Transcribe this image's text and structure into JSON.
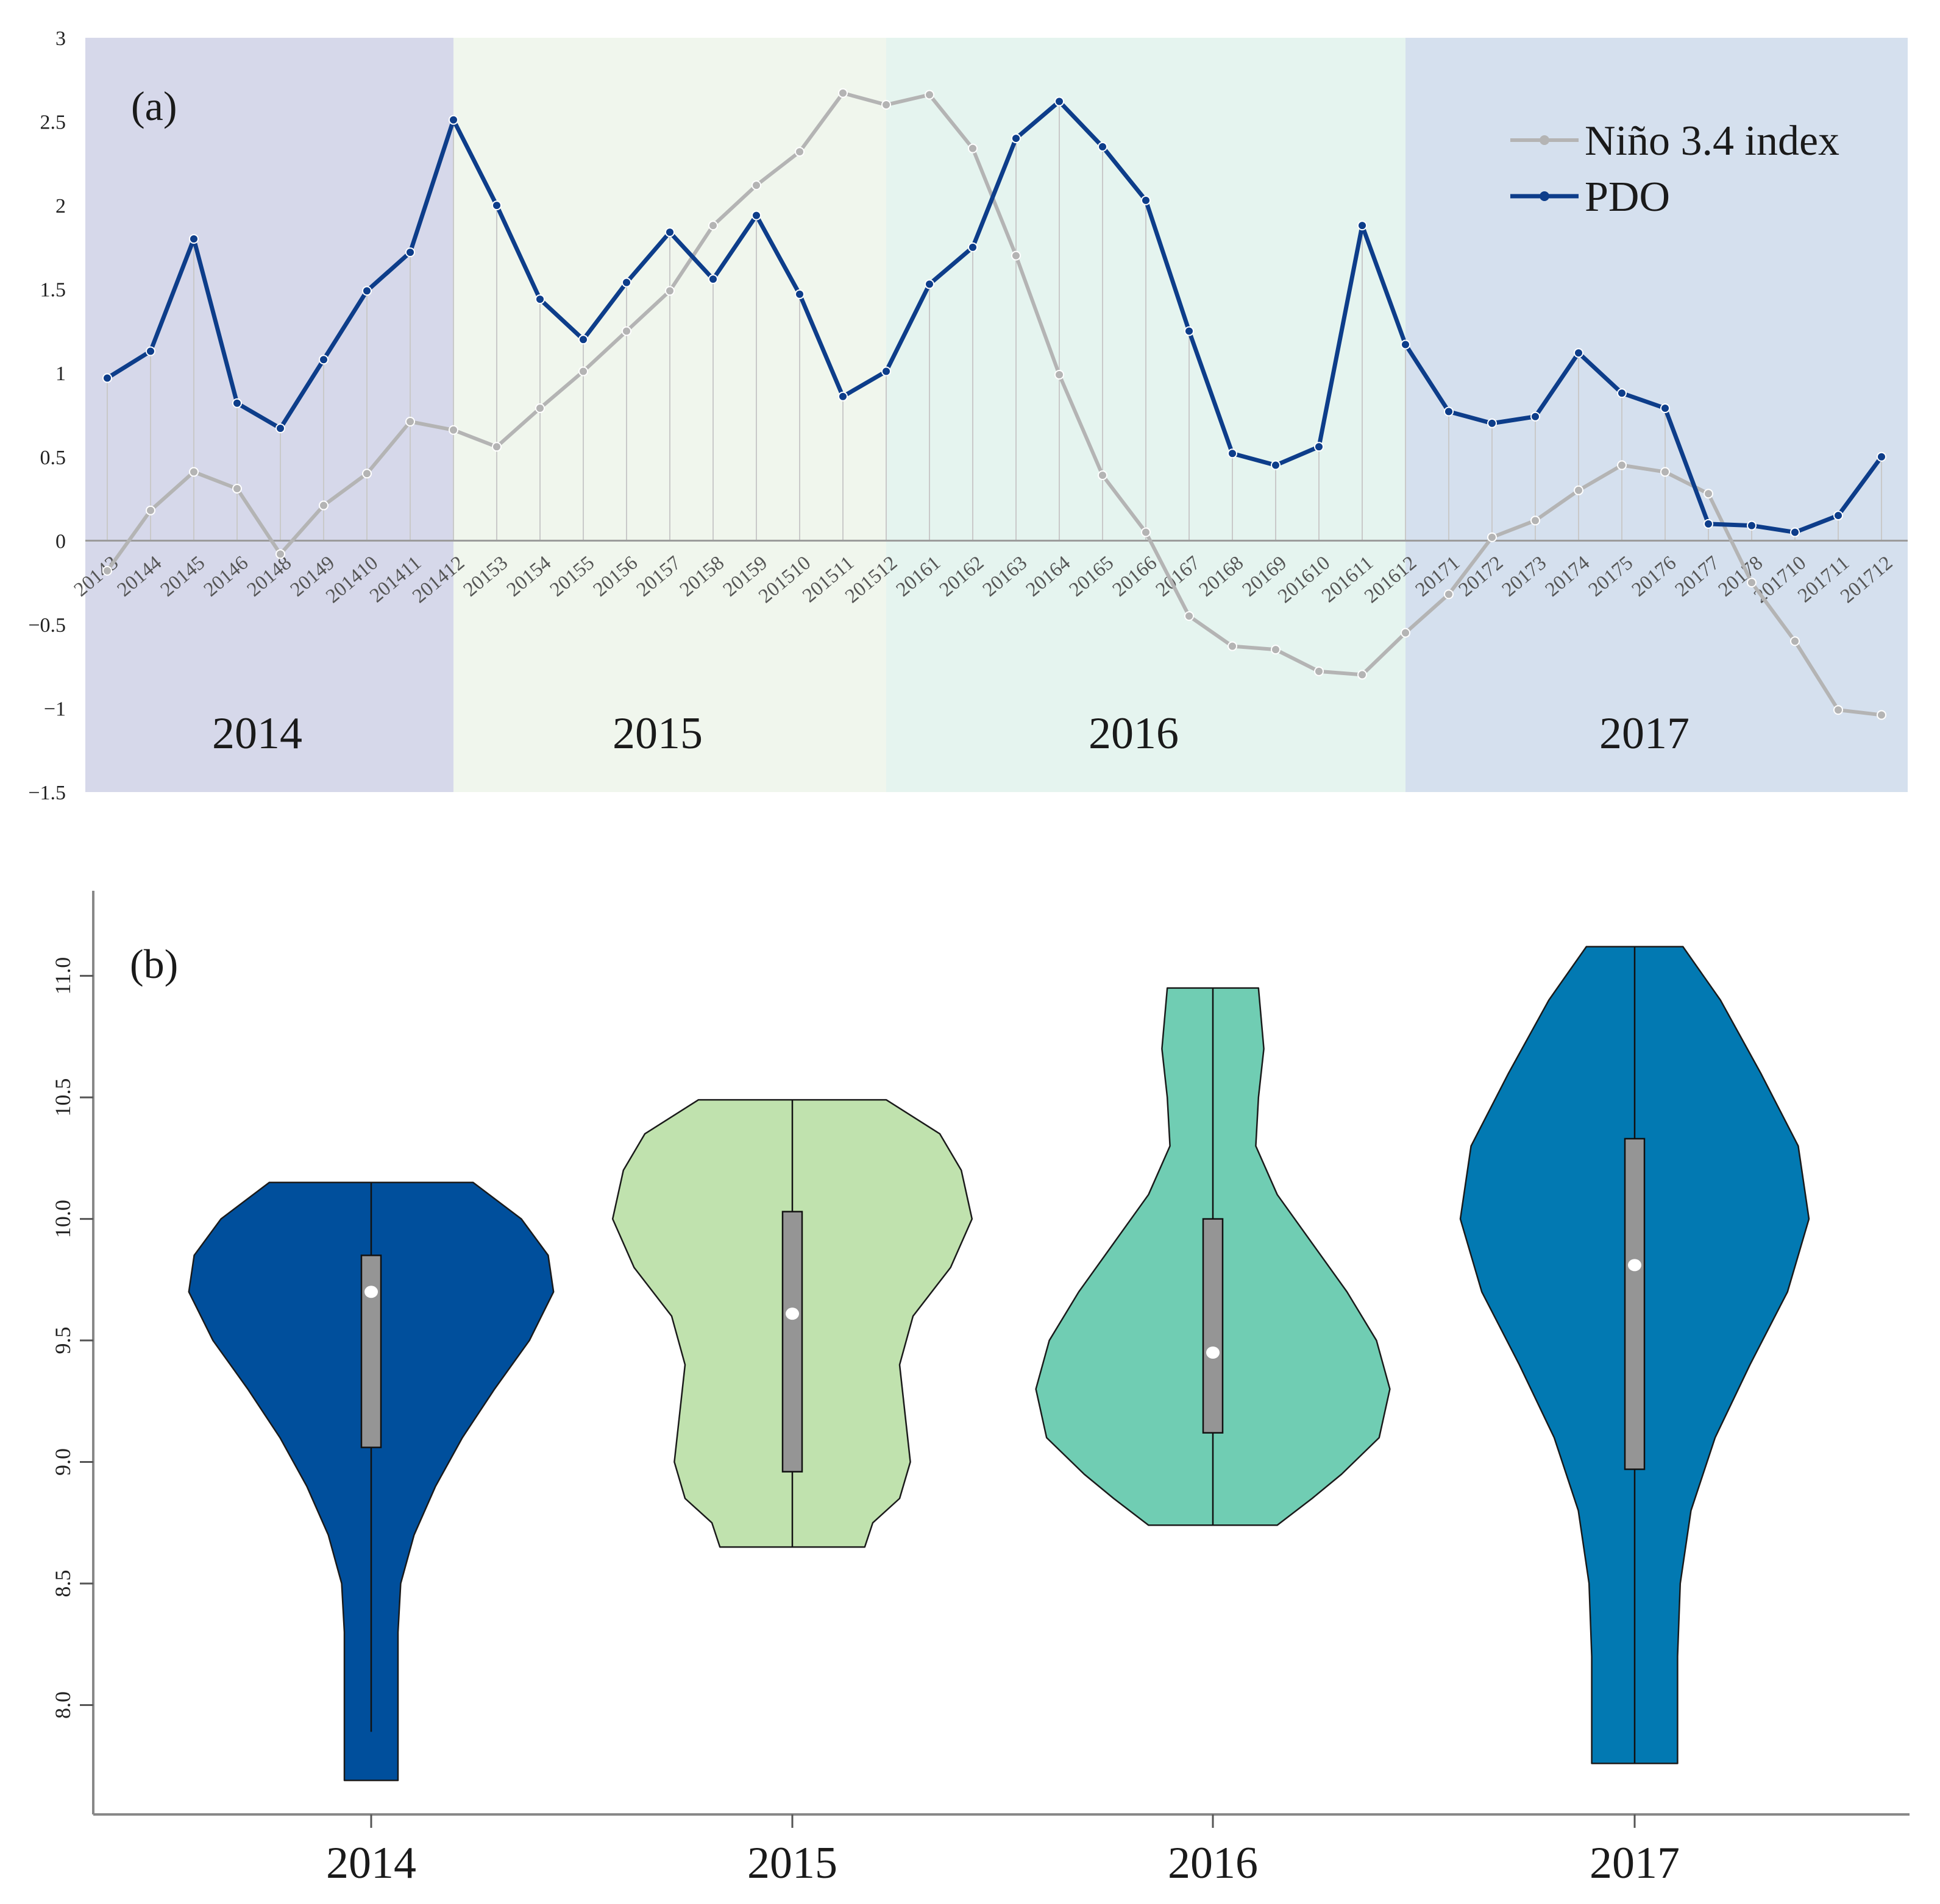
{
  "chart_data": [
    {
      "type": "line",
      "panel_label": "(a)",
      "x": [
        "20143",
        "20144",
        "20145",
        "20146",
        "20148",
        "20149",
        "201410",
        "201411",
        "201412",
        "20153",
        "20154",
        "20155",
        "20156",
        "20157",
        "20158",
        "20159",
        "201510",
        "201511",
        "201512",
        "20161",
        "20162",
        "20163",
        "20164",
        "20165",
        "20166",
        "20167",
        "20168",
        "20169",
        "201610",
        "201611",
        "201612",
        "20171",
        "20172",
        "20173",
        "20174",
        "20175",
        "20176",
        "20177",
        "20178",
        "201710",
        "201711",
        "201712"
      ],
      "series": [
        {
          "name": "Niño 3.4 index",
          "color": "#b4b4b4",
          "values": [
            -0.18,
            0.18,
            0.41,
            0.31,
            -0.08,
            0.21,
            0.4,
            0.71,
            0.66,
            0.56,
            0.79,
            1.01,
            1.25,
            1.49,
            1.88,
            2.12,
            2.32,
            2.67,
            2.6,
            2.66,
            2.34,
            1.7,
            0.99,
            0.39,
            0.05,
            -0.45,
            -0.63,
            -0.65,
            -0.78,
            -0.8,
            -0.55,
            -0.32,
            0.02,
            0.12,
            0.3,
            0.45,
            0.41,
            0.28,
            -0.25,
            -0.6,
            -1.01,
            -1.04
          ]
        },
        {
          "name": "PDO",
          "color": "#0d3d8a",
          "values": [
            0.97,
            1.13,
            1.8,
            0.82,
            0.67,
            1.08,
            1.49,
            1.72,
            2.51,
            2.0,
            1.44,
            1.2,
            1.54,
            1.84,
            1.56,
            1.94,
            1.47,
            0.86,
            1.01,
            1.53,
            1.75,
            2.4,
            2.62,
            2.35,
            2.03,
            1.25,
            0.52,
            0.45,
            0.56,
            1.88,
            1.17,
            0.77,
            0.7,
            0.74,
            1.12,
            0.88,
            0.79,
            0.1,
            0.09,
            0.05,
            0.15,
            0.5
          ]
        }
      ],
      "yticks": [
        "3",
        "2.5",
        "2",
        "1.5",
        "1",
        "0.5",
        "0",
        "−0.5",
        "−1",
        "−1.5"
      ],
      "ylim": [
        -1.5,
        3
      ],
      "year_bands": [
        {
          "label": "2014",
          "color": "#d6d8ea",
          "start": 0,
          "end": 8
        },
        {
          "label": "2015",
          "color": "#f0f6ed",
          "start": 8,
          "end": 18
        },
        {
          "label": "2016",
          "color": "#e5f4ef",
          "start": 18,
          "end": 30
        },
        {
          "label": "2017",
          "color": "#d5e0ee",
          "start": 30,
          "end": 41
        }
      ],
      "legend_position": "top-right",
      "grid": false
    },
    {
      "type": "violin",
      "panel_label": "(b)",
      "categories": [
        "2014",
        "2015",
        "2016",
        "2017"
      ],
      "yticks": [
        "8.0",
        "8.5",
        "9.0",
        "9.5",
        "10.0",
        "10.5",
        "11.0"
      ],
      "ylim": [
        7.55,
        11.35
      ],
      "violins": [
        {
          "category": "2014",
          "color": "#004f9c",
          "min": 7.69,
          "max": 10.15,
          "q1": 9.06,
          "median": 9.7,
          "q3": 9.85,
          "whisker_low": 7.89,
          "profile": [
            [
              10.15,
              0.38
            ],
            [
              10.0,
              0.56
            ],
            [
              9.85,
              0.66
            ],
            [
              9.7,
              0.68
            ],
            [
              9.5,
              0.59
            ],
            [
              9.3,
              0.46
            ],
            [
              9.1,
              0.34
            ],
            [
              8.9,
              0.24
            ],
            [
              8.7,
              0.16
            ],
            [
              8.5,
              0.11
            ],
            [
              8.3,
              0.1
            ],
            [
              8.1,
              0.1
            ],
            [
              7.9,
              0.1
            ],
            [
              7.69,
              0.1
            ]
          ]
        },
        {
          "category": "2015",
          "color": "#c0e2ae",
          "min": 8.65,
          "max": 10.49,
          "q1": 8.96,
          "median": 9.61,
          "q3": 10.03,
          "whisker_low": 8.65,
          "profile": [
            [
              10.49,
              0.35
            ],
            [
              10.35,
              0.55
            ],
            [
              10.2,
              0.63
            ],
            [
              10.0,
              0.67
            ],
            [
              9.8,
              0.59
            ],
            [
              9.6,
              0.45
            ],
            [
              9.4,
              0.4
            ],
            [
              9.2,
              0.42
            ],
            [
              9.0,
              0.44
            ],
            [
              8.85,
              0.4
            ],
            [
              8.75,
              0.3
            ],
            [
              8.65,
              0.27
            ]
          ]
        },
        {
          "category": "2016",
          "color": "#70cdb3",
          "min": 8.74,
          "max": 10.95,
          "q1": 9.12,
          "median": 9.45,
          "q3": 10.0,
          "whisker_low": 8.74,
          "profile": [
            [
              10.95,
              0.17
            ],
            [
              10.7,
              0.19
            ],
            [
              10.5,
              0.17
            ],
            [
              10.3,
              0.16
            ],
            [
              10.1,
              0.24
            ],
            [
              9.9,
              0.37
            ],
            [
              9.7,
              0.5
            ],
            [
              9.5,
              0.61
            ],
            [
              9.3,
              0.66
            ],
            [
              9.1,
              0.62
            ],
            [
              8.95,
              0.48
            ],
            [
              8.85,
              0.37
            ],
            [
              8.74,
              0.24
            ]
          ]
        },
        {
          "category": "2017",
          "color": "#0279b2",
          "min": 7.76,
          "max": 11.12,
          "q1": 8.97,
          "median": 9.81,
          "q3": 10.33,
          "whisker_low": 7.76,
          "profile": [
            [
              11.12,
              0.18
            ],
            [
              10.9,
              0.32
            ],
            [
              10.6,
              0.47
            ],
            [
              10.3,
              0.61
            ],
            [
              10.0,
              0.65
            ],
            [
              9.7,
              0.57
            ],
            [
              9.4,
              0.43
            ],
            [
              9.1,
              0.3
            ],
            [
              8.8,
              0.21
            ],
            [
              8.5,
              0.17
            ],
            [
              8.2,
              0.16
            ],
            [
              7.76,
              0.16
            ]
          ]
        }
      ]
    }
  ]
}
